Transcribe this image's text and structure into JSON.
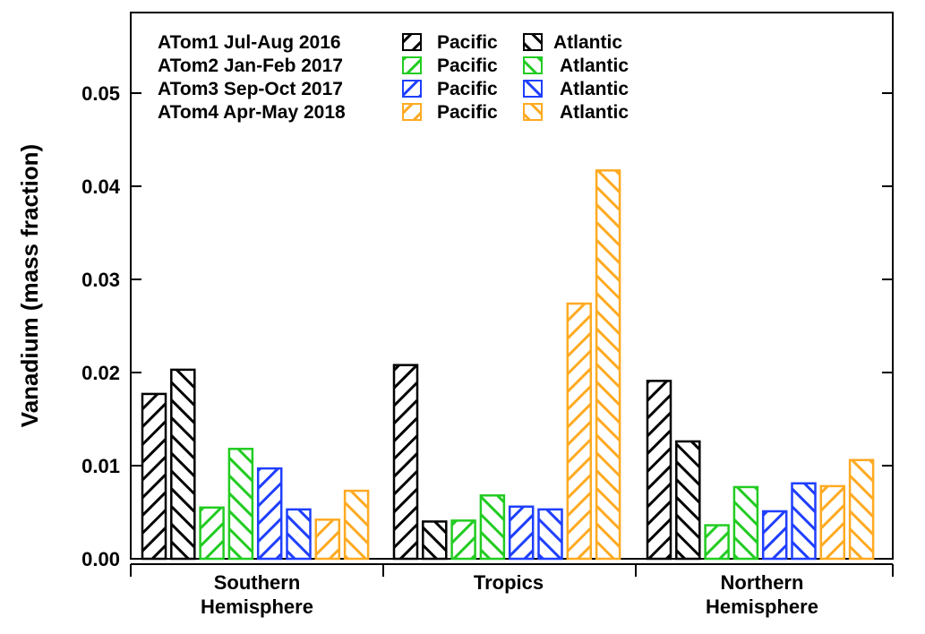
{
  "chart_data": {
    "type": "bar",
    "title": "",
    "xlabel": "",
    "ylabel": "Vanadium (mass fraction)",
    "ylim": [
      0,
      0.058
    ],
    "yticks": [
      "0.00",
      "0.01",
      "0.02",
      "0.03",
      "0.04",
      "0.05"
    ],
    "categories": [
      [
        "Southern",
        "Hemisphere"
      ],
      [
        "Tropics"
      ],
      [
        "Northern",
        "Hemisphere"
      ]
    ],
    "campaigns": [
      {
        "label": "ATom1 Jul-Aug 2016",
        "color": "#000000"
      },
      {
        "label": "ATom2 Jan-Feb 2017",
        "color": "#22cc22"
      },
      {
        "label": "ATom3 Sep-Oct 2017",
        "color": "#1f3fff"
      },
      {
        "label": "ATom4 Apr-May 2018",
        "color": "#ffaa22"
      }
    ],
    "ocean_labels": {
      "pacific": "Pacific",
      "atlantic": "Atlantic"
    },
    "series": [
      {
        "campaign": 0,
        "ocean": "pacific",
        "values": [
          0.0177,
          0.0208,
          0.0191
        ]
      },
      {
        "campaign": 0,
        "ocean": "atlantic",
        "values": [
          0.0203,
          0.004,
          0.0126
        ]
      },
      {
        "campaign": 1,
        "ocean": "pacific",
        "values": [
          0.0055,
          0.0041,
          0.0036
        ]
      },
      {
        "campaign": 1,
        "ocean": "atlantic",
        "values": [
          0.0118,
          0.0068,
          0.0077
        ]
      },
      {
        "campaign": 2,
        "ocean": "pacific",
        "values": [
          0.0097,
          0.0056,
          0.0051
        ]
      },
      {
        "campaign": 2,
        "ocean": "atlantic",
        "values": [
          0.0053,
          0.0053,
          0.0081
        ]
      },
      {
        "campaign": 3,
        "ocean": "pacific",
        "values": [
          0.0042,
          0.0274,
          0.0078
        ]
      },
      {
        "campaign": 3,
        "ocean": "atlantic",
        "values": [
          0.0073,
          0.0417,
          0.0106
        ]
      }
    ],
    "legend_position": "top-left",
    "grid": false
  }
}
